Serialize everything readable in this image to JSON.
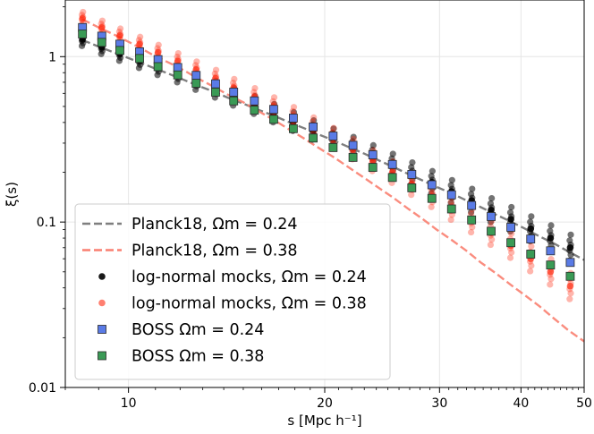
{
  "chart_data": {
    "type": "scatter",
    "xlabel": "s [Mpc h⁻¹]",
    "ylabel": "ξ(s)",
    "x_scale": "log",
    "y_scale": "log",
    "xlim": [
      8,
      50
    ],
    "ylim": [
      0.01,
      2.2
    ],
    "x_ticks": [
      {
        "value": 10,
        "label": "10"
      },
      {
        "value": 20,
        "label": "20"
      },
      {
        "value": 30,
        "label": "30"
      },
      {
        "value": 40,
        "label": "40"
      },
      {
        "value": 50,
        "label": "50"
      }
    ],
    "y_ticks": [
      {
        "value": 0.01,
        "label": "0.01"
      },
      {
        "value": 0.1,
        "label": "0.1"
      },
      {
        "value": 1,
        "label": "1"
      }
    ],
    "grid": true,
    "legend_position": "lower-left",
    "x": [
      8.5,
      9.0,
      9.5,
      10.0,
      10.5,
      11.0,
      11.6,
      12.2,
      12.8,
      13.5,
      14.2,
      15.0,
      15.8,
      16.7,
      17.6,
      18.6,
      19.6,
      20.7,
      21.8,
      23.0,
      24.2,
      25.5,
      26.8,
      28.2,
      29.7,
      31.3,
      33.0,
      34.7,
      36.6,
      38.5,
      40.6,
      42.7,
      45.0,
      47.4,
      50.0
    ],
    "series": [
      {
        "name": "Planck18, Ωm = 0.24",
        "kind": "dashed-line",
        "color": "#7f7f7f",
        "values": [
          1.26,
          1.15,
          1.06,
          0.98,
          0.91,
          0.845,
          0.78,
          0.72,
          0.665,
          0.615,
          0.565,
          0.52,
          0.478,
          0.44,
          0.403,
          0.369,
          0.338,
          0.31,
          0.283,
          0.259,
          0.236,
          0.215,
          0.196,
          0.179,
          0.163,
          0.149,
          0.135,
          0.123,
          0.111,
          0.101,
          0.091,
          0.082,
          0.074,
          0.066,
          0.059
        ]
      },
      {
        "name": "Planck18, Ωm = 0.38",
        "kind": "dashed-line",
        "color": "#fa7f70",
        "values": [
          1.68,
          1.5,
          1.36,
          1.23,
          1.11,
          1.005,
          0.91,
          0.82,
          0.735,
          0.66,
          0.59,
          0.53,
          0.47,
          0.415,
          0.365,
          0.32,
          0.28,
          0.245,
          0.213,
          0.185,
          0.161,
          0.14,
          0.121,
          0.105,
          0.09,
          0.078,
          0.067,
          0.057,
          0.049,
          0.042,
          0.036,
          0.031,
          0.026,
          0.022,
          0.019
        ]
      },
      {
        "name": "log-normal mocks, Ωm = 0.24",
        "kind": "mock-points",
        "color": "#000000",
        "x": [
          8.5,
          9.1,
          9.7,
          10.4,
          11.1,
          11.9,
          12.7,
          13.6,
          14.5,
          15.6,
          16.7,
          17.9,
          19.2,
          20.6,
          22.1,
          23.7,
          25.4,
          27.2,
          29.2,
          31.3,
          33.6,
          36.0,
          38.6,
          41.4,
          44.4,
          47.6
        ],
        "values": [
          1.27,
          1.14,
          1.04,
          0.945,
          0.86,
          0.78,
          0.705,
          0.635,
          0.57,
          0.51,
          0.455,
          0.405,
          0.36,
          0.32,
          0.284,
          0.252,
          0.223,
          0.197,
          0.174,
          0.153,
          0.135,
          0.118,
          0.104,
          0.091,
          0.08,
          0.07
        ]
      },
      {
        "name": "log-normal mocks, Ωm = 0.38",
        "kind": "mock-points",
        "color": "#ff2a10",
        "x": [
          8.5,
          9.1,
          9.7,
          10.4,
          11.1,
          11.9,
          12.7,
          13.6,
          14.5,
          15.6,
          16.7,
          17.9,
          19.2,
          20.6,
          22.1,
          23.7,
          25.4,
          27.2,
          29.2,
          31.3,
          33.6,
          36.0,
          38.6,
          41.4,
          44.4,
          47.6
        ],
        "values": [
          1.7,
          1.5,
          1.34,
          1.19,
          1.06,
          0.94,
          0.835,
          0.74,
          0.65,
          0.57,
          0.5,
          0.435,
          0.375,
          0.323,
          0.276,
          0.235,
          0.2,
          0.17,
          0.144,
          0.121,
          0.102,
          0.086,
          0.072,
          0.06,
          0.05,
          0.041
        ]
      },
      {
        "name": "BOSS Ωm = 0.24",
        "kind": "square-points",
        "color": "#5a7be6",
        "x": [
          8.5,
          9.1,
          9.7,
          10.4,
          11.1,
          11.9,
          12.7,
          13.6,
          14.5,
          15.6,
          16.7,
          17.9,
          19.2,
          20.6,
          22.1,
          23.7,
          25.4,
          27.2,
          29.2,
          31.3,
          33.6,
          36.0,
          38.6,
          41.4,
          44.4,
          47.6
        ],
        "values": [
          1.5,
          1.33,
          1.19,
          1.07,
          0.96,
          0.86,
          0.77,
          0.685,
          0.61,
          0.54,
          0.48,
          0.425,
          0.376,
          0.331,
          0.291,
          0.255,
          0.223,
          0.194,
          0.168,
          0.146,
          0.126,
          0.108,
          0.093,
          0.079,
          0.067,
          0.057
        ]
      },
      {
        "name": "BOSS Ωm = 0.38",
        "kind": "square-points",
        "color": "#3a9a55",
        "x": [
          8.5,
          9.1,
          9.7,
          10.4,
          11.1,
          11.9,
          12.7,
          13.6,
          14.5,
          15.6,
          16.7,
          17.9,
          19.2,
          20.6,
          22.1,
          23.7,
          25.4,
          27.2,
          29.2,
          31.3,
          33.6,
          36.0,
          38.6,
          41.4,
          44.4,
          47.6
        ],
        "values": [
          1.37,
          1.22,
          1.09,
          0.975,
          0.87,
          0.775,
          0.69,
          0.61,
          0.54,
          0.475,
          0.418,
          0.367,
          0.322,
          0.282,
          0.246,
          0.214,
          0.186,
          0.161,
          0.139,
          0.12,
          0.103,
          0.088,
          0.075,
          0.064,
          0.055,
          0.047
        ]
      }
    ]
  }
}
